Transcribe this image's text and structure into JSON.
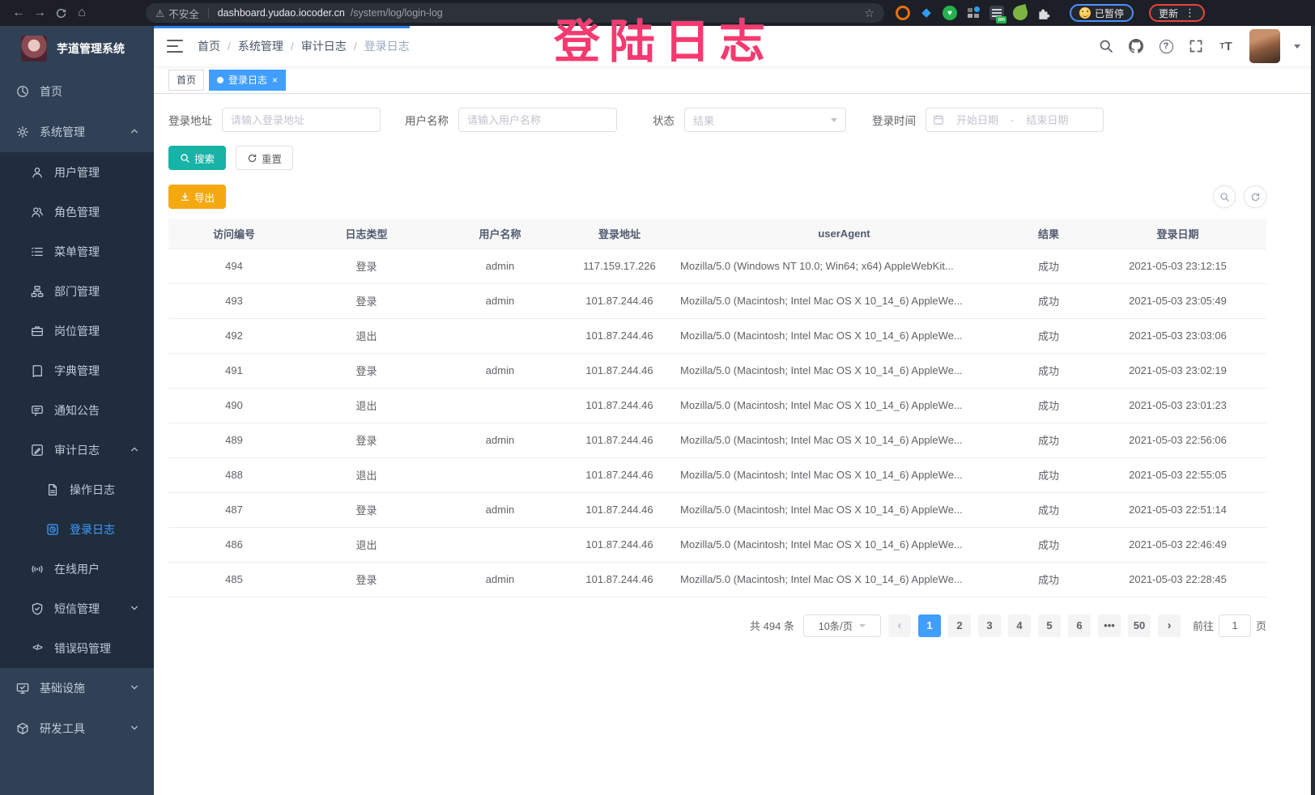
{
  "browser": {
    "security_warning": "不安全",
    "url_host": "dashboard.yudao.iocoder.cn",
    "url_path": "/system/log/login-log",
    "paused_badge": "已暂停",
    "update_button": "更新",
    "extension_on_badge": "on"
  },
  "icons": {
    "back": "←",
    "forward": "→",
    "home": "⌂",
    "star": "☆",
    "warning": "⚠",
    "gem": "◆",
    "heart": "♥",
    "menu_dots": "⋮",
    "ellipsis": "•••",
    "chevron_left": "‹",
    "chevron_right": "›",
    "code": "</>",
    "question": "?",
    "font_size_big": "T",
    "font_size_small": "T",
    "tag_close": "×"
  },
  "annotation": {
    "text": "登陆日志",
    "color": "#f43a70"
  },
  "sidebar": {
    "title": "芋道管理系统",
    "items": [
      {
        "label": "首页",
        "icon": "dashboard",
        "depth": 1,
        "active": false,
        "chevron": null
      },
      {
        "label": "系统管理",
        "icon": "gear",
        "depth": 1,
        "active": false,
        "chevron": "up"
      },
      {
        "label": "用户管理",
        "icon": "user",
        "depth": 2,
        "active": false,
        "chevron": null
      },
      {
        "label": "角色管理",
        "icon": "users",
        "depth": 2,
        "active": false,
        "chevron": null
      },
      {
        "label": "菜单管理",
        "icon": "menu",
        "depth": 2,
        "active": false,
        "chevron": null
      },
      {
        "label": "部门管理",
        "icon": "tree",
        "depth": 2,
        "active": false,
        "chevron": null
      },
      {
        "label": "岗位管理",
        "icon": "briefcase",
        "depth": 2,
        "active": false,
        "chevron": null
      },
      {
        "label": "字典管理",
        "icon": "book",
        "depth": 2,
        "active": false,
        "chevron": null
      },
      {
        "label": "通知公告",
        "icon": "megaphone",
        "depth": 2,
        "active": false,
        "chevron": null
      },
      {
        "label": "审计日志",
        "icon": "edit",
        "depth": 2,
        "active": false,
        "chevron": "up"
      },
      {
        "label": "操作日志",
        "icon": "doc",
        "depth": 3,
        "active": false,
        "chevron": null
      },
      {
        "label": "登录日志",
        "icon": "login",
        "depth": 3,
        "active": true,
        "chevron": null
      },
      {
        "label": "在线用户",
        "icon": "online",
        "depth": 2,
        "active": false,
        "chevron": null
      },
      {
        "label": "短信管理",
        "icon": "shield",
        "depth": 2,
        "active": false,
        "chevron": "down"
      },
      {
        "label": "错误码管理",
        "icon": "code",
        "depth": 2,
        "active": false,
        "chevron": null
      },
      {
        "label": "基础设施",
        "icon": "monitor",
        "depth": 1,
        "active": false,
        "chevron": "down"
      },
      {
        "label": "研发工具",
        "icon": "toolbox",
        "depth": 1,
        "active": false,
        "chevron": "down"
      }
    ]
  },
  "breadcrumb": {
    "items": [
      "首页",
      "系统管理",
      "审计日志",
      "登录日志"
    ],
    "separator": "/"
  },
  "tags": [
    {
      "label": "首页",
      "active": false
    },
    {
      "label": "登录日志",
      "active": true
    }
  ],
  "filters": {
    "login_address": {
      "label": "登录地址",
      "placeholder": "请输入登录地址"
    },
    "username": {
      "label": "用户名称",
      "placeholder": "请输入用户名称"
    },
    "status": {
      "label": "状态",
      "placeholder": "结果"
    },
    "login_time": {
      "label": "登录时间",
      "start_placeholder": "开始日期",
      "separator": "-",
      "end_placeholder": "结束日期"
    }
  },
  "actions": {
    "search": "搜索",
    "reset": "重置",
    "export": "导出"
  },
  "table": {
    "columns": [
      "访问编号",
      "日志类型",
      "用户名称",
      "登录地址",
      "userAgent",
      "结果",
      "登录日期"
    ],
    "rows": [
      [
        "494",
        "登录",
        "admin",
        "117.159.17.226",
        "Mozilla/5.0 (Windows NT 10.0; Win64; x64) AppleWebKit...",
        "成功",
        "2021-05-03 23:12:15"
      ],
      [
        "493",
        "登录",
        "admin",
        "101.87.244.46",
        "Mozilla/5.0 (Macintosh; Intel Mac OS X 10_14_6) AppleWe...",
        "成功",
        "2021-05-03 23:05:49"
      ],
      [
        "492",
        "退出",
        "",
        "101.87.244.46",
        "Mozilla/5.0 (Macintosh; Intel Mac OS X 10_14_6) AppleWe...",
        "成功",
        "2021-05-03 23:03:06"
      ],
      [
        "491",
        "登录",
        "admin",
        "101.87.244.46",
        "Mozilla/5.0 (Macintosh; Intel Mac OS X 10_14_6) AppleWe...",
        "成功",
        "2021-05-03 23:02:19"
      ],
      [
        "490",
        "退出",
        "",
        "101.87.244.46",
        "Mozilla/5.0 (Macintosh; Intel Mac OS X 10_14_6) AppleWe...",
        "成功",
        "2021-05-03 23:01:23"
      ],
      [
        "489",
        "登录",
        "admin",
        "101.87.244.46",
        "Mozilla/5.0 (Macintosh; Intel Mac OS X 10_14_6) AppleWe...",
        "成功",
        "2021-05-03 22:56:06"
      ],
      [
        "488",
        "退出",
        "",
        "101.87.244.46",
        "Mozilla/5.0 (Macintosh; Intel Mac OS X 10_14_6) AppleWe...",
        "成功",
        "2021-05-03 22:55:05"
      ],
      [
        "487",
        "登录",
        "admin",
        "101.87.244.46",
        "Mozilla/5.0 (Macintosh; Intel Mac OS X 10_14_6) AppleWe...",
        "成功",
        "2021-05-03 22:51:14"
      ],
      [
        "486",
        "退出",
        "",
        "101.87.244.46",
        "Mozilla/5.0 (Macintosh; Intel Mac OS X 10_14_6) AppleWe...",
        "成功",
        "2021-05-03 22:46:49"
      ],
      [
        "485",
        "登录",
        "admin",
        "101.87.244.46",
        "Mozilla/5.0 (Macintosh; Intel Mac OS X 10_14_6) AppleWe...",
        "成功",
        "2021-05-03 22:28:45"
      ]
    ]
  },
  "pagination": {
    "total": "共 494 条",
    "page_size": "10条/页",
    "pages": [
      "1",
      "2",
      "3",
      "4",
      "5",
      "6",
      "•••",
      "50"
    ],
    "active_page": "1",
    "goto_label": "前往",
    "goto_value": "1",
    "page_unit": "页"
  },
  "colors": {
    "accent_blue": "#409eff",
    "sidebar_bg": "#304156",
    "submenu_bg": "#1f2d3d",
    "search_button": "#16b3a6",
    "export_button": "#f5a911",
    "annotation_pink": "#f43a70"
  }
}
